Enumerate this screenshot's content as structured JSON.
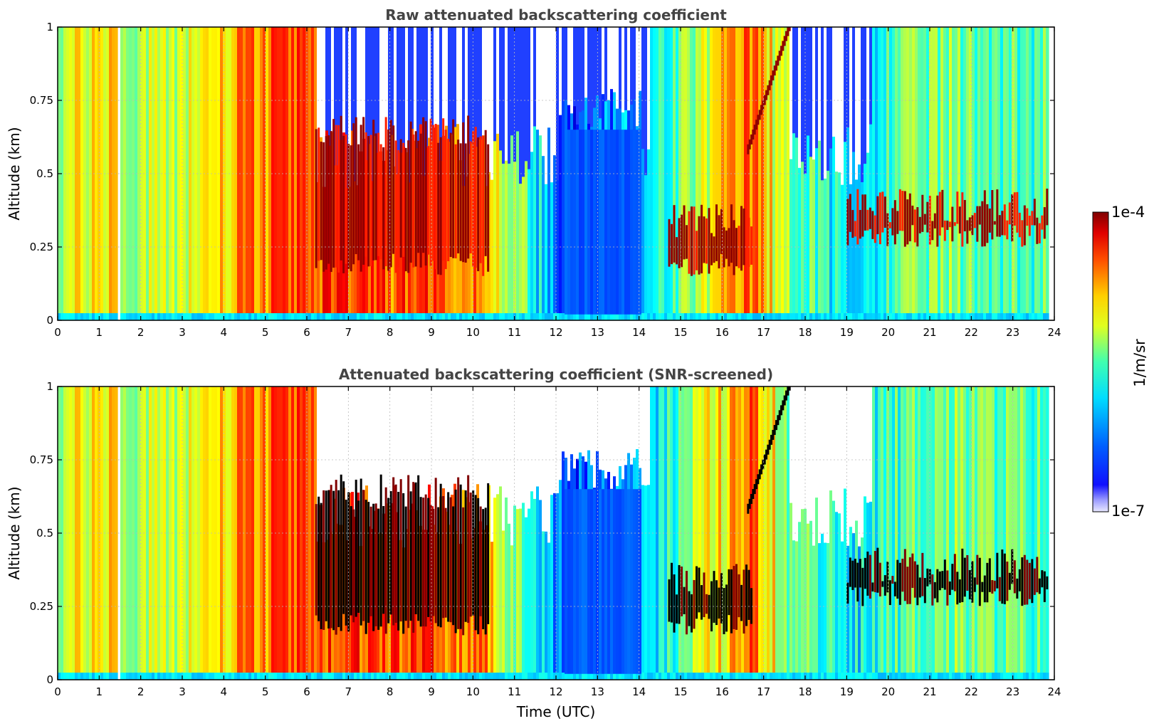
{
  "chart_data": [
    {
      "type": "heatmap",
      "title": "Raw attenuated backscattering coefficient",
      "xlabel": "",
      "ylabel": "Altitude (km)",
      "xlim": [
        0,
        24
      ],
      "ylim": [
        0,
        1
      ],
      "x_ticks": [
        "0",
        "1",
        "2",
        "3",
        "4",
        "5",
        "6",
        "7",
        "8",
        "9",
        "10",
        "11",
        "12",
        "13",
        "14",
        "15",
        "16",
        "17",
        "18",
        "19",
        "20",
        "21",
        "22",
        "23",
        "24"
      ],
      "y_ticks": [
        "0",
        "0.25",
        "0.5",
        "0.75",
        "1"
      ],
      "grid": true,
      "colormap": "jet",
      "color_scale": "log",
      "value_unit": "1/m/sr",
      "value_range": [
        1e-07,
        0.0001
      ],
      "overview": {
        "time_utc": [
          0,
          1.4,
          1.5,
          3.5,
          4.4,
          6.1,
          8.0,
          9.0,
          10.3,
          12.2,
          14.0,
          16.7,
          17.6,
          19.0,
          21.0,
          23.8
        ],
        "band_level_0_to_1": [
          0.55,
          0.7,
          0.5,
          0.62,
          0.72,
          0.82,
          0.78,
          0.8,
          0.72,
          0.18,
          0.3,
          0.78,
          0.5,
          0.35,
          0.5,
          0.45
        ],
        "cloud_layers": [
          {
            "t_start": 6.2,
            "t_end": 10.4,
            "alt_low_km": 0.15,
            "alt_high_km": 0.7
          },
          {
            "t_start": 14.7,
            "t_end": 16.7,
            "alt_low_km": 0.15,
            "alt_high_km": 0.4
          },
          {
            "t_start": 19.0,
            "t_end": 23.8,
            "alt_low_km": 0.25,
            "alt_high_km": 0.45
          }
        ]
      }
    },
    {
      "type": "heatmap",
      "title": "Attenuated backscattering coefficient (SNR-screened)",
      "xlabel": "Time (UTC)",
      "ylabel": "Altitude (km)",
      "xlim": [
        0,
        24
      ],
      "ylim": [
        0,
        1
      ],
      "x_ticks": [
        "0",
        "1",
        "2",
        "3",
        "4",
        "5",
        "6",
        "7",
        "8",
        "9",
        "10",
        "11",
        "12",
        "13",
        "14",
        "15",
        "16",
        "17",
        "18",
        "19",
        "20",
        "21",
        "22",
        "23",
        "24"
      ],
      "y_ticks": [
        "0",
        "0.25",
        "0.5",
        "0.75",
        "1"
      ],
      "grid": true,
      "colormap": "jet",
      "color_scale": "log",
      "value_unit": "1/m/sr",
      "value_range": [
        1e-07,
        0.0001
      ],
      "overview": {
        "screened_out_color": "#ffffff",
        "saturated_color": "#000000"
      }
    }
  ],
  "colorbar": {
    "label": "1/m/sr",
    "max_label": "1e-4",
    "min_label": "1e-7",
    "colormap": "jet"
  }
}
